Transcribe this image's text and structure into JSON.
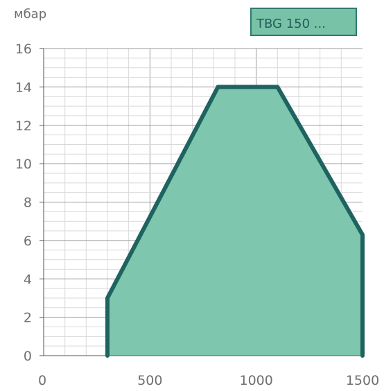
{
  "colors": {
    "fill": "#7ec6ae",
    "stroke": "#1f6360",
    "legend_fill": "#78c2a8",
    "legend_border": "#2f7a70",
    "grid_minor": "#d9d9d9",
    "grid_major": "#9a9a9a",
    "axis": "#555555",
    "text": "#6f6f6f"
  },
  "chart_data": {
    "type": "area",
    "ylabel": "мбар",
    "xlabel": "",
    "legend": {
      "label": "TBG 150 ...",
      "position": "top-right"
    },
    "xlim": [
      0,
      1500
    ],
    "ylim": [
      0,
      16
    ],
    "x_ticks": [
      0,
      500,
      1000,
      1500
    ],
    "x_tick_labels": [
      "0",
      "500",
      "1000",
      "1500"
    ],
    "y_ticks": [
      0,
      2,
      4,
      6,
      8,
      10,
      12,
      14,
      16
    ],
    "y_tick_labels": [
      "0",
      "2",
      "4",
      "6",
      "8",
      "10",
      "12",
      "14",
      "16"
    ],
    "grid": true,
    "minor_grid": {
      "x_step": 100,
      "y_step": 0.5
    },
    "series": [
      {
        "name": "TBG 150 ...",
        "x": [
          300,
          300,
          820,
          1100,
          1500,
          1500
        ],
        "y": [
          0,
          3,
          14,
          14,
          6.3,
          0
        ]
      }
    ]
  }
}
